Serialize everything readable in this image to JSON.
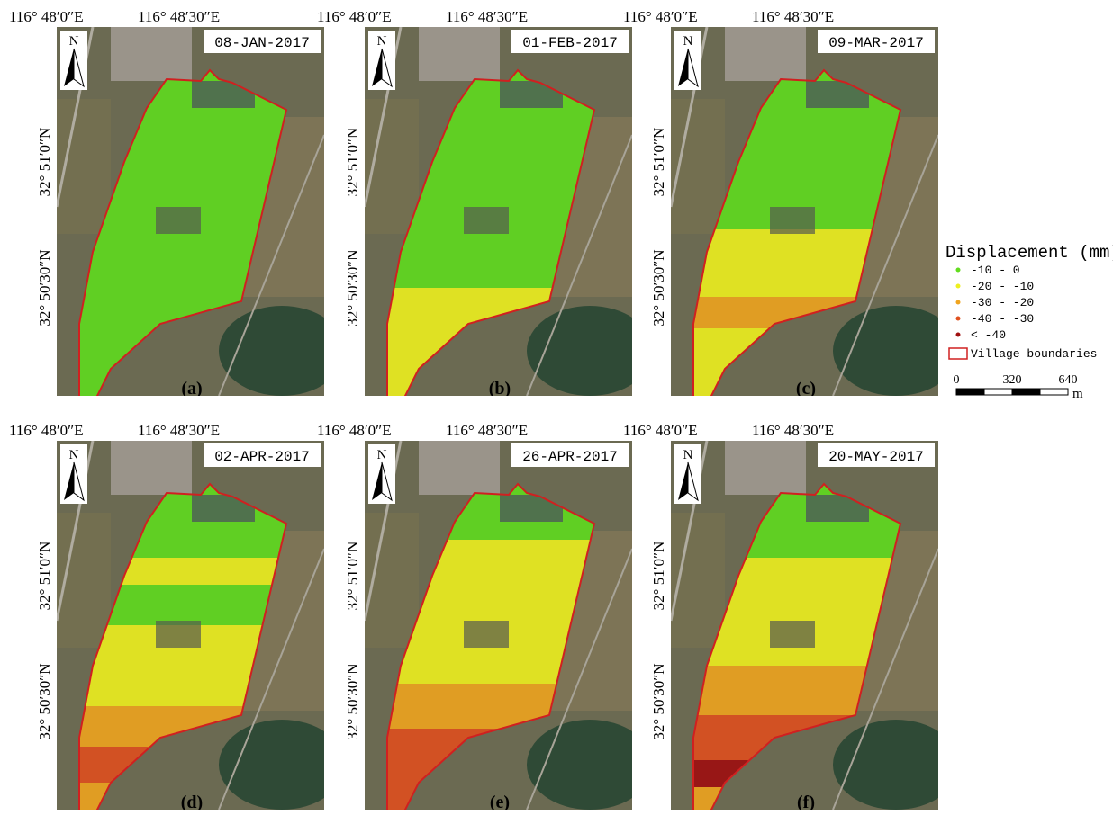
{
  "lon_labels": [
    "116° 48′0″E",
    "116° 48′30″E"
  ],
  "lat_labels": [
    "32° 51′0″N",
    "32° 50′30″N"
  ],
  "north": "N",
  "panels": [
    {
      "date": "08-JAN-2017",
      "label": "(a)"
    },
    {
      "date": "01-FEB-2017",
      "label": "(b)"
    },
    {
      "date": "09-MAR-2017",
      "label": "(c)"
    },
    {
      "date": "02-APR-2017",
      "label": "(d)"
    },
    {
      "date": "26-APR-2017",
      "label": "(e)"
    },
    {
      "date": "20-MAY-2017",
      "label": "(f)"
    }
  ],
  "legend": {
    "title": "Displacement (mm)",
    "items": [
      {
        "label": "-10 - 0",
        "color": "#62dc1e"
      },
      {
        "label": "-20 - -10",
        "color": "#eef01e"
      },
      {
        "label": "-30 - -20",
        "color": "#f0a41e"
      },
      {
        "label": "-40 - -30",
        "color": "#e0501e"
      },
      {
        "label": "< -40",
        "color": "#a01010"
      }
    ],
    "boundary": {
      "label": "Village boundaries",
      "color": "#d02020"
    }
  },
  "scale": {
    "ticks": [
      "0",
      "320",
      "640"
    ],
    "unit": "m"
  }
}
